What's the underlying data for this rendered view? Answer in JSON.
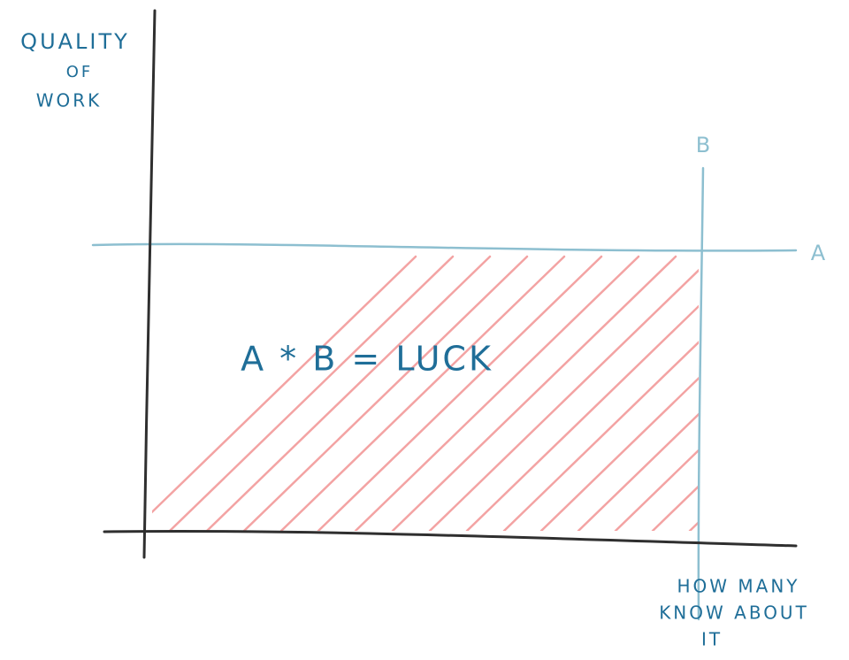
{
  "y_axis_label": [
    "QUALITY",
    "OF",
    "WORK"
  ],
  "x_axis_label": [
    "HOW MANY",
    "KNOW ABOUT",
    "IT"
  ],
  "lines": {
    "a": "A",
    "b": "B"
  },
  "equation": "A * B = LUCK"
}
